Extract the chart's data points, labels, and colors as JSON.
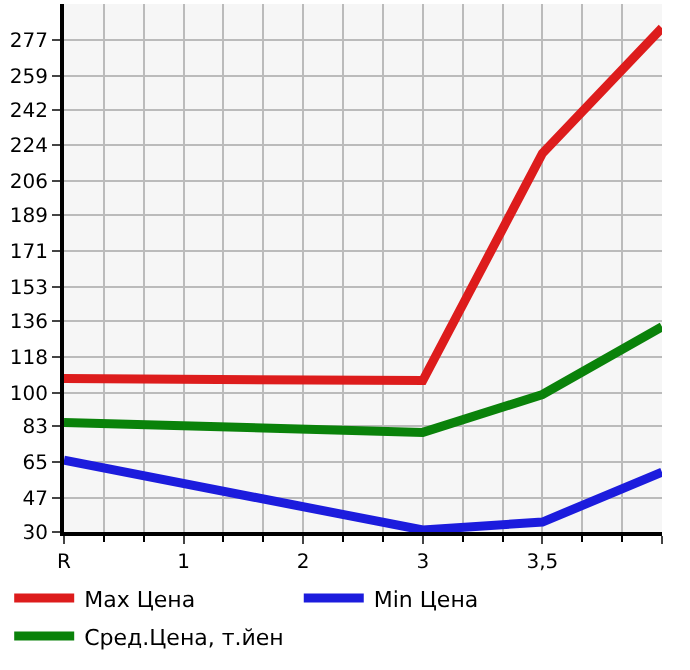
{
  "chart_data": {
    "type": "line",
    "categories": [
      "R",
      "1",
      "2",
      "3",
      "3,5",
      null
    ],
    "series": [
      {
        "name": "Max Цена",
        "color": "#dd1c1c",
        "values": [
          107,
          null,
          null,
          106,
          220,
          283
        ]
      },
      {
        "name": "Min Цена",
        "color": "#1c1cdd",
        "values": [
          66,
          null,
          null,
          31,
          35,
          60
        ]
      },
      {
        "name": "Сред.Цена, т.йен",
        "color": "#0a820a",
        "values": [
          85,
          null,
          null,
          80,
          99,
          133
        ]
      }
    ],
    "ylim": [
      30,
      295
    ],
    "yticks": [
      30,
      47,
      65,
      83,
      100,
      118,
      136,
      153,
      171,
      189,
      206,
      224,
      242,
      259,
      277
    ],
    "grid": true,
    "legend": "bottom",
    "marker": "none",
    "line_style": "solid"
  }
}
